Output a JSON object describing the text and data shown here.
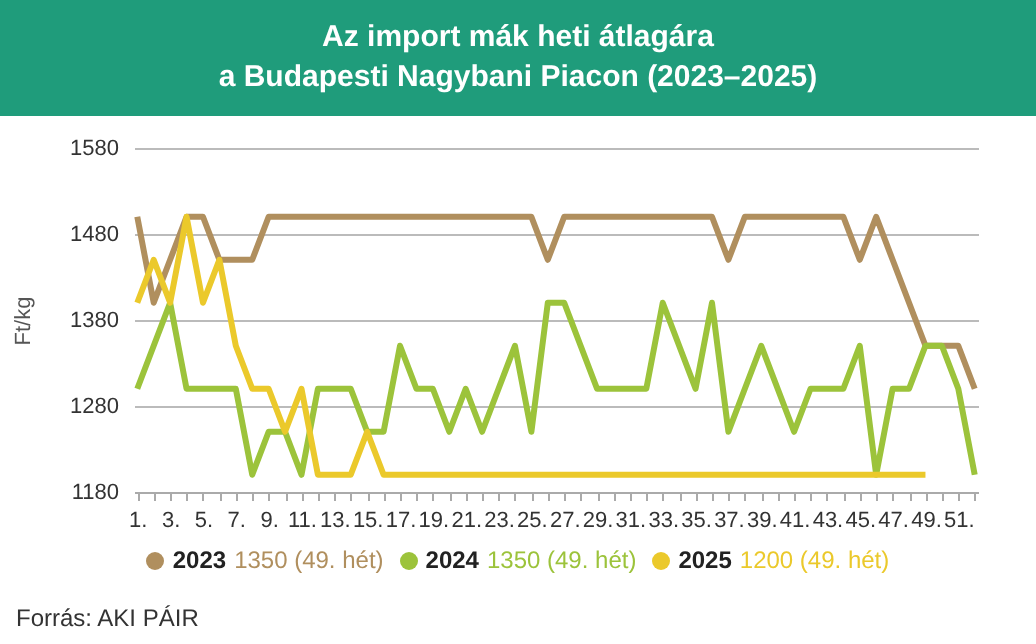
{
  "chart_data": {
    "type": "line",
    "title": "Az import mák heti átlagára\na Budapesti Nagybani Piacon (2023–2025)",
    "ylabel": "Ft/kg",
    "categories": [
      "1.",
      null,
      "3.",
      null,
      "5.",
      null,
      "7.",
      null,
      "9.",
      null,
      "11.",
      null,
      "13.",
      null,
      "15.",
      null,
      "17.",
      null,
      "19.",
      null,
      "21.",
      null,
      "23.",
      null,
      "25.",
      null,
      "27.",
      null,
      "29.",
      null,
      "31.",
      null,
      "33.",
      null,
      "35.",
      null,
      "37.",
      null,
      "39.",
      null,
      "41.",
      null,
      "43.",
      null,
      "45.",
      null,
      "47.",
      null,
      "49.",
      null,
      "51.",
      null
    ],
    "series": [
      {
        "name": "2023",
        "color": "#b08f5e",
        "values": [
          1500,
          1400,
          1450,
          1500,
          1500,
          1450,
          1450,
          1450,
          1500,
          1500,
          1500,
          1500,
          1500,
          1500,
          1500,
          1500,
          1500,
          1500,
          1500,
          1500,
          1500,
          1500,
          1500,
          1500,
          1500,
          1450,
          1500,
          1500,
          1500,
          1500,
          1500,
          1500,
          1500,
          1500,
          1500,
          1500,
          1450,
          1500,
          1500,
          1500,
          1500,
          1500,
          1500,
          1500,
          1450,
          1500,
          1450,
          1400,
          1350,
          1350,
          1350,
          1300
        ]
      },
      {
        "name": "2024",
        "color": "#9cc33b",
        "values": [
          1300,
          1350,
          1400,
          1300,
          1300,
          1300,
          1300,
          1200,
          1250,
          1250,
          1200,
          1300,
          1300,
          1300,
          1250,
          1250,
          1350,
          1300,
          1300,
          1250,
          1300,
          1250,
          1300,
          1350,
          1250,
          1400,
          1400,
          1350,
          1300,
          1300,
          1300,
          1300,
          1400,
          1350,
          1300,
          1400,
          1250,
          1300,
          1350,
          1300,
          1250,
          1300,
          1300,
          1300,
          1350,
          1200,
          1300,
          1300,
          1350,
          1350,
          1300,
          1200
        ]
      },
      {
        "name": "2025",
        "color": "#ebc92b",
        "values": [
          1400,
          1450,
          1400,
          1500,
          1400,
          1450,
          1350,
          1300,
          1300,
          1250,
          1300,
          1200,
          1200,
          1200,
          1250,
          1200,
          1200,
          1200,
          1200,
          1200,
          1200,
          1200,
          1200,
          1200,
          1200,
          1200,
          1200,
          1200,
          1200,
          1200,
          1200,
          1200,
          1200,
          1200,
          1200,
          1200,
          1200,
          1200,
          1200,
          1200,
          1200,
          1200,
          1200,
          1200,
          1200,
          1200,
          1200,
          1200,
          1200,
          null,
          null,
          null
        ]
      }
    ],
    "annotations": [
      "1350 (49. hét)",
      "1350 (49. hét)",
      "1200 (49. hét)",
      "Forrás: AKI PÁIR"
    ],
    "ylim": [
      1180,
      1580
    ],
    "yticks": [
      1180,
      1280,
      1380,
      1480,
      1580
    ],
    "grid": "y",
    "legend": "bottom",
    "marker": "none",
    "line_style": "solid"
  }
}
